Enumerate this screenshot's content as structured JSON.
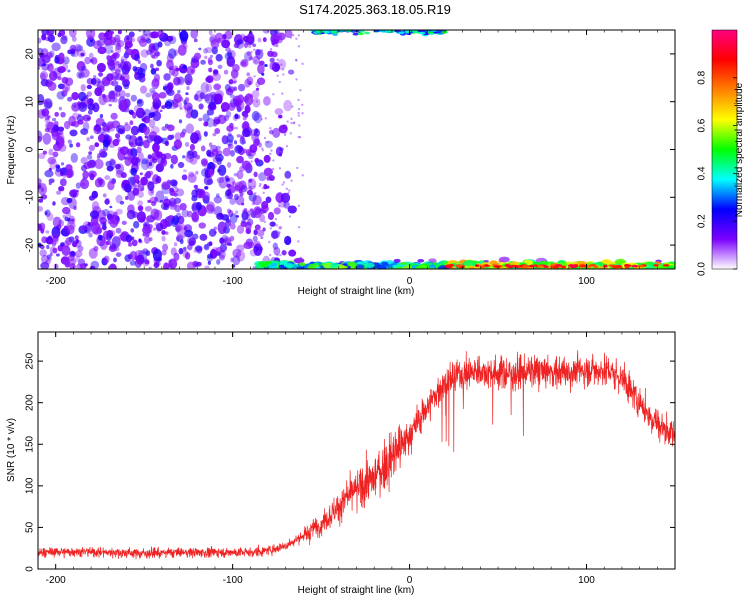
{
  "figure": {
    "title": "S174.2025.363.18.05.R19"
  },
  "chart_data": [
    {
      "type": "heatmap",
      "xlabel": "Height of straight line (km)",
      "ylabel": "Frequency (Hz)",
      "xlim": [
        -210,
        150
      ],
      "ylim": [
        -25,
        25
      ],
      "xticks": [
        -200,
        -100,
        0,
        100
      ],
      "yticks": [
        -20,
        -10,
        0,
        10,
        20
      ],
      "colorbar": {
        "label": "Normalized spectral amplitude",
        "range": [
          0,
          1
        ],
        "ticks": [
          "0.0",
          "0.2",
          "0.4",
          "0.6",
          "0.8"
        ],
        "colors": [
          "#ffffff",
          "#7b00ff",
          "#0000ff",
          "#00ffff",
          "#00ff00",
          "#ffff00",
          "#ff8000",
          "#ff0000",
          "#ff0080"
        ]
      },
      "regions": [
        {
          "description_free": true,
          "x_range": [
            -210,
            -70
          ],
          "y_range": [
            -25,
            25
          ],
          "amplitude": 0.05
        },
        {
          "x_range": [
            -85,
            150
          ],
          "y_range": [
            -25,
            -22
          ],
          "amplitude": 0.6
        },
        {
          "x_range": [
            -55,
            20
          ],
          "y_range": [
            22,
            25
          ],
          "amplitude": 0.4
        }
      ]
    },
    {
      "type": "line",
      "xlabel": "Height of straight line (km)",
      "ylabel": "SNR (10 * v/v)",
      "xlim": [
        -210,
        150
      ],
      "ylim": [
        0,
        285
      ],
      "xticks": [
        -200,
        -100,
        0,
        100
      ],
      "yticks": [
        0,
        50,
        100,
        150,
        200,
        250
      ],
      "color": "#ee2222",
      "series": [
        {
          "x": [
            -210,
            -190,
            -170,
            -150,
            -130,
            -110,
            -90,
            -80,
            -70,
            -60,
            -50,
            -40,
            -30,
            -20,
            -10,
            0,
            10,
            20,
            30,
            40,
            50,
            60,
            70,
            80,
            90,
            100,
            110,
            120,
            130,
            140,
            150
          ],
          "y": [
            20,
            21,
            20,
            19,
            20,
            20,
            20,
            22,
            28,
            40,
            55,
            75,
            95,
            110,
            135,
            160,
            195,
            225,
            235,
            238,
            236,
            235,
            238,
            237,
            237,
            239,
            240,
            230,
            200,
            175,
            160
          ]
        }
      ]
    }
  ]
}
